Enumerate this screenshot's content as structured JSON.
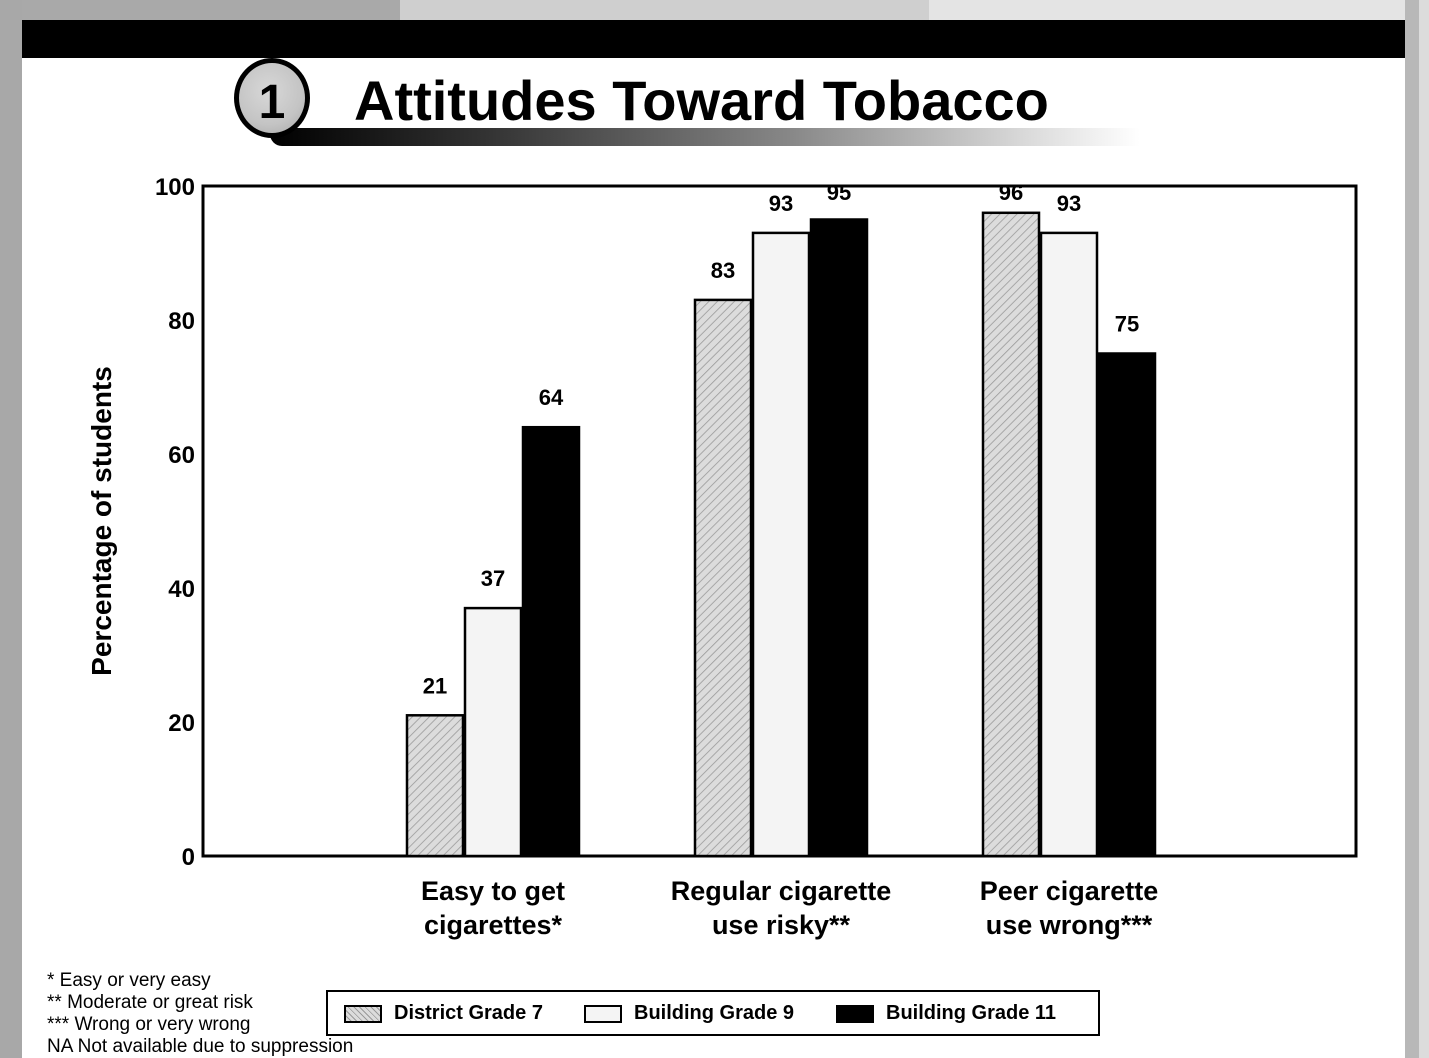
{
  "header": {
    "badge_number": "1",
    "title": "Attitudes Toward Tobacco"
  },
  "colors": {
    "district_grade_7": "#d4d4d4",
    "building_grade_9": "#f4f4f4",
    "building_grade_11": "#000000"
  },
  "chart_data": {
    "type": "bar",
    "title": "Attitudes Toward Tobacco",
    "ylabel": "Percentage of students",
    "xlabel": "",
    "ylim": [
      0,
      100
    ],
    "yticks": [
      0,
      20,
      40,
      60,
      80,
      100
    ],
    "categories": [
      [
        "Easy to get",
        "cigarettes*"
      ],
      [
        "Regular cigarette",
        "use risky**"
      ],
      [
        "Peer cigarette",
        "use wrong***"
      ]
    ],
    "series": [
      {
        "name": "District Grade 7",
        "values": [
          21,
          83,
          96
        ],
        "labels": [
          "21",
          "83",
          "96"
        ]
      },
      {
        "name": "Building Grade 9",
        "values": [
          37,
          93,
          93
        ],
        "labels": [
          "37",
          "93",
          "93"
        ]
      },
      {
        "name": "Building Grade 11",
        "values": [
          64,
          95,
          75
        ],
        "labels": [
          "64",
          "95",
          "75"
        ]
      }
    ],
    "grid": false,
    "legend_position": "bottom"
  },
  "footnotes": [
    "* Easy or very easy",
    "** Moderate or great risk",
    "*** Wrong or very wrong",
    "NA Not available due to suppression"
  ]
}
